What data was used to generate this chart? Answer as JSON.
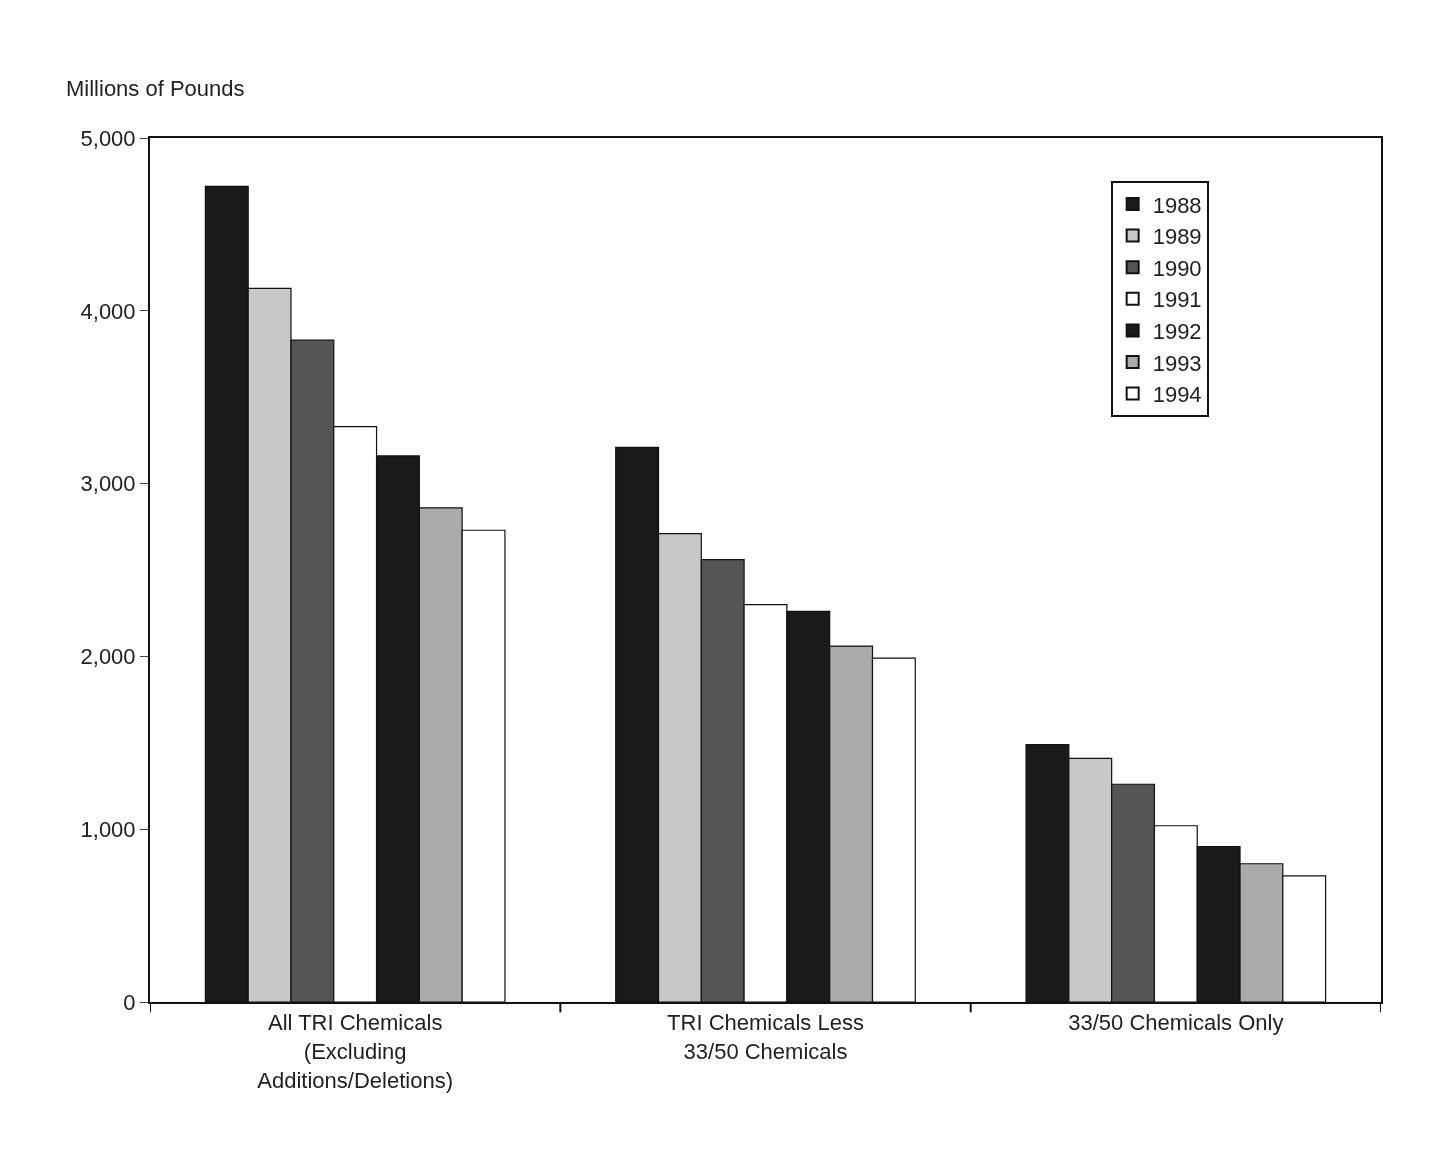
{
  "chart_data": {
    "type": "bar",
    "ylabel": "Millions of Pounds",
    "categories": [
      "All TRI Chemicals\n(Excluding\nAdditions/Deletions)",
      "TRI Chemicals Less\n33/50 Chemicals",
      "33/50 Chemicals Only"
    ],
    "series": [
      {
        "name": "1988",
        "color": "#1a1a1a",
        "values": [
          4720,
          3210,
          1490
        ]
      },
      {
        "name": "1989",
        "color": "#c8c8c8",
        "values": [
          4130,
          2710,
          1410
        ]
      },
      {
        "name": "1990",
        "color": "#555555",
        "values": [
          3830,
          2560,
          1260
        ]
      },
      {
        "name": "1991",
        "color": "#ffffff",
        "values": [
          3330,
          2300,
          1020
        ]
      },
      {
        "name": "1992",
        "color": "#1a1a1a",
        "values": [
          3160,
          2260,
          900
        ]
      },
      {
        "name": "1993",
        "color": "#aaaaaa",
        "values": [
          2860,
          2060,
          800
        ]
      },
      {
        "name": "1994",
        "color": "#ffffff",
        "values": [
          2730,
          1990,
          730
        ]
      }
    ],
    "ylim": [
      0,
      5000
    ],
    "yticks": [
      {
        "value": 0,
        "label": "0"
      },
      {
        "value": 1000,
        "label": "1,000"
      },
      {
        "value": 2000,
        "label": "2,000"
      },
      {
        "value": 3000,
        "label": "3,000"
      },
      {
        "value": 4000,
        "label": "4,000"
      },
      {
        "value": 5000,
        "label": "5,000"
      }
    ],
    "legend": "top right"
  }
}
